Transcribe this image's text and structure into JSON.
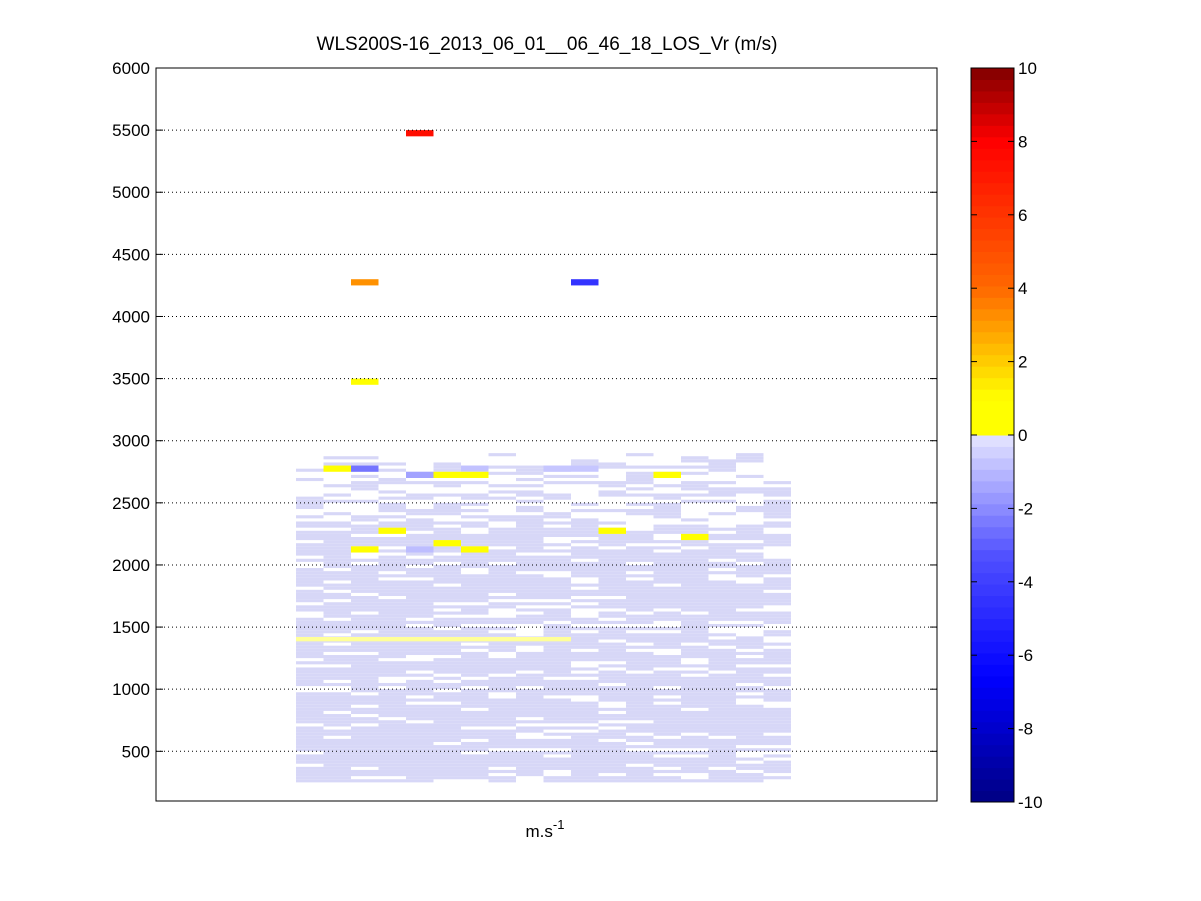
{
  "chart_data": {
    "type": "heatmap",
    "title": "WLS200S-16_2013_06_01__06_46_18_LOS_Vr (m/s)",
    "xlabel_base": "m.s",
    "xlabel_sup": "-1",
    "ylabel": "",
    "ylim": [
      100,
      6000
    ],
    "yticks": [
      500,
      1000,
      1500,
      2000,
      2500,
      3000,
      3500,
      4000,
      4500,
      5000,
      5500,
      6000
    ],
    "grid": "horizontal-dotted",
    "colorbar": {
      "range": [
        -10,
        10
      ],
      "ticks": [
        -10,
        -8,
        -6,
        -4,
        -2,
        0,
        2,
        4,
        6,
        8,
        10
      ],
      "colormap": "jet-like, white near zero"
    },
    "column_count": 18,
    "bin_height": 50,
    "cells": [
      {
        "col": 4,
        "y": 5450,
        "v": 7.5
      },
      {
        "col": 2,
        "y": 4250,
        "v": 3.2
      },
      {
        "col": 10,
        "y": 4250,
        "v": -4.5
      },
      {
        "col": 2,
        "y": 3450,
        "v": 1.0
      },
      {
        "col": 1,
        "y": 2750,
        "v": 0.9
      },
      {
        "col": 2,
        "y": 2750,
        "v": -2.5
      },
      {
        "col": 6,
        "y": 2750,
        "v": -0.8
      },
      {
        "col": 9,
        "y": 2750,
        "v": -0.7
      },
      {
        "col": 10,
        "y": 2750,
        "v": -0.7
      },
      {
        "col": 13,
        "y": 2700,
        "v": 0.9
      },
      {
        "col": 4,
        "y": 2700,
        "v": -1.5
      },
      {
        "col": 5,
        "y": 2700,
        "v": 0.4
      },
      {
        "col": 6,
        "y": 2700,
        "v": 0.8
      },
      {
        "col": 3,
        "y": 2250,
        "v": 0.4
      },
      {
        "col": 5,
        "y": 2150,
        "v": 0.6
      },
      {
        "col": 4,
        "y": 2100,
        "v": -0.9
      },
      {
        "col": 2,
        "y": 2100,
        "v": 0.7
      },
      {
        "col": 6,
        "y": 2100,
        "v": 0.9
      },
      {
        "col": 11,
        "y": 2250,
        "v": 0.4
      },
      {
        "col": 14,
        "y": 2200,
        "v": 0.4
      }
    ]
  }
}
